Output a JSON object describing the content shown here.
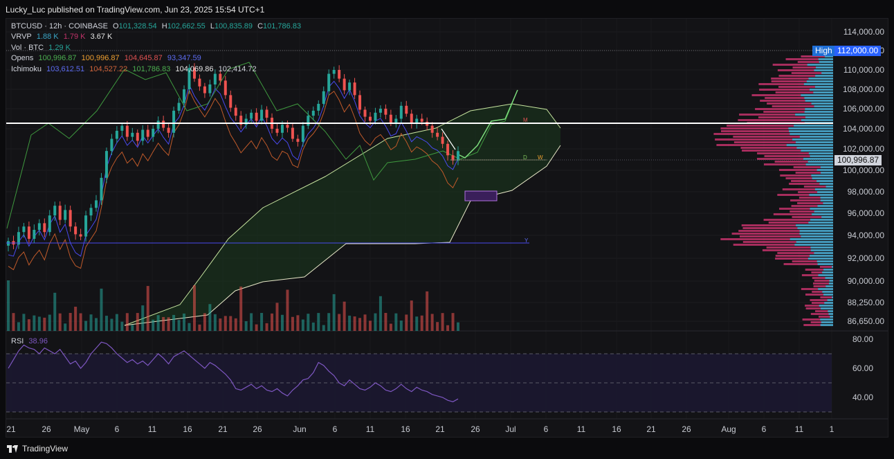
{
  "header": {
    "published": "Lucky_Luc published on TradingView.com, Jun 23, 2025 15:54 UTC+1"
  },
  "legend": {
    "symbol": "BTCUSD · 12h · COINBASE",
    "o_label": "O",
    "o": "101,328.54",
    "h_label": "H",
    "h": "102,662.55",
    "l_label": "L",
    "l": "100,835.89",
    "c_label": "C",
    "c": "101,786.83",
    "vrvp_label": "VRVP",
    "vrvp1": "1.88 K",
    "vrvp2": "1.79 K",
    "vrvp3": "3.67 K",
    "vol_label": "Vol · BTC",
    "vol": "1.29 K",
    "opens_label": "Opens",
    "opens1": "100,996.87",
    "opens2": "100,996.87",
    "opens3": "104,645.87",
    "opens4": "93,347.59",
    "ichi_label": "Ichimoku",
    "ichi1": "103,612.51",
    "ichi2": "104,527.22",
    "ichi3": "101,786.83",
    "ichi4": "104,069.86",
    "ichi5": "102,414.72"
  },
  "markers": {
    "m": "M",
    "d": "D",
    "w": "W",
    "y": "Y"
  },
  "high_tag": {
    "label": "High",
    "value": "112,000.00"
  },
  "current_price": "100,996.87",
  "rsi": {
    "label": "RSI",
    "value": "38.96"
  },
  "footer": {
    "brand": "TradingView"
  },
  "colors": {
    "up": "#26a69a",
    "down": "#ef5350",
    "conversion": "#4a4af0",
    "base": "#c05a2a",
    "lagging": "#3f9a3f",
    "span": "#e8e8c8",
    "rsi": "#7e57c2",
    "vrvp_up": "#3aa6c6",
    "vrvp_down": "#c2336a"
  },
  "chart_data": [
    {
      "type": "candlestick",
      "title": "BTCUSD · 12h · COINBASE",
      "y_axis": {
        "ticks": [
          114000,
          112000,
          110000,
          108000,
          106000,
          104000,
          102000,
          100000,
          98000,
          96000,
          94000,
          92000,
          90000,
          88250,
          86650
        ],
        "tick_labels": [
          "114,000.00",
          "112,000.00",
          "110,000.00",
          "108,000.00",
          "106,000.00",
          "104,000.00",
          "102,000.00",
          "100,000.00",
          "98,000.00",
          "96,000.00",
          "94,000.00",
          "92,000.00",
          "90,000.00",
          "88,250.00",
          "86,650.00"
        ]
      },
      "x_axis": {
        "tick_labels": [
          "21",
          "26",
          "May",
          "6",
          "11",
          "16",
          "21",
          "26",
          "Jun",
          "6",
          "11",
          "16",
          "21",
          "26",
          "Jul",
          "6",
          "11",
          "16",
          "21",
          "26",
          "Aug",
          "6",
          "11",
          "1"
        ]
      },
      "horizontal_lines": [
        {
          "label": "M",
          "value": 104550
        },
        {
          "label": "D",
          "value": 101000
        },
        {
          "label": "W",
          "value": 101000
        },
        {
          "label": "Y",
          "value": 93350
        }
      ],
      "close_series": [
        93500,
        93200,
        94300,
        94800,
        93700,
        94500,
        95100,
        94300,
        95800,
        96700,
        95400,
        96300,
        94800,
        94100,
        93900,
        95800,
        96500,
        97200,
        99300,
        101800,
        103000,
        103800,
        104300,
        103200,
        103600,
        102800,
        103900,
        103200,
        104000,
        104800,
        104100,
        103600,
        105800,
        106600,
        108000,
        110200,
        109100,
        108300,
        107600,
        108500,
        109600,
        108900,
        107400,
        106100,
        105300,
        104400,
        105000,
        105600,
        104800,
        105900,
        105100,
        104000,
        103600,
        104400,
        104100,
        103000,
        102700,
        104300,
        105300,
        105800,
        106500,
        107800,
        109600,
        110000,
        109100,
        107900,
        108700,
        107400,
        105900,
        105200,
        104800,
        105600,
        106000,
        105400,
        104600,
        105000,
        106300,
        105500,
        104500,
        105000,
        104700,
        104300,
        103600,
        103200,
        102500,
        101400,
        100900,
        101786.83
      ]
    },
    {
      "type": "line",
      "name": "RSI",
      "y_axis": {
        "ticks": [
          80,
          60,
          40
        ],
        "tick_labels": [
          "80.00",
          "60.00",
          "40.00"
        ]
      },
      "bands": [
        70,
        50,
        30
      ],
      "values": [
        60,
        66,
        72,
        76,
        74,
        73,
        70,
        74,
        72,
        70,
        73,
        68,
        63,
        65,
        60,
        64,
        70,
        74,
        78,
        77,
        74,
        70,
        67,
        64,
        66,
        63,
        65,
        62,
        66,
        70,
        67,
        63,
        68,
        70,
        72,
        69,
        66,
        63,
        60,
        64,
        62,
        59,
        56,
        52,
        46,
        45,
        47,
        49,
        46,
        48,
        45,
        44,
        46,
        43,
        41,
        45,
        48,
        52,
        53,
        57,
        64,
        62,
        58,
        55,
        50,
        48,
        52,
        49,
        46,
        45,
        47,
        50,
        48,
        45,
        44,
        46,
        49,
        46,
        44,
        47,
        45,
        44,
        42,
        41,
        40,
        38,
        37,
        38.96
      ]
    }
  ]
}
